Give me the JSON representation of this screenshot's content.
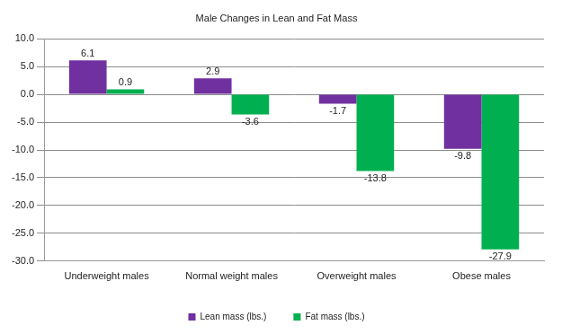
{
  "chart_data": {
    "type": "bar",
    "title": "Male Changes in Lean and Fat Mass",
    "categories": [
      "Underweight males",
      "Normal weight males",
      "Overweight males",
      "Obese males"
    ],
    "series": [
      {
        "name": "Lean mass (lbs.)",
        "color": "#7030a0",
        "values": [
          6.1,
          2.9,
          -1.7,
          -9.8
        ]
      },
      {
        "name": "Fat mass (lbs.)",
        "color": "#00b050",
        "values": [
          0.9,
          -3.6,
          -13.8,
          -27.9
        ]
      }
    ],
    "ylim": [
      -30,
      10
    ],
    "yticks": [
      {
        "value": -30,
        "label": "-30.0"
      },
      {
        "value": -25,
        "label": "-25.0"
      },
      {
        "value": -20,
        "label": "-20.0"
      },
      {
        "value": -15,
        "label": "-15.0"
      },
      {
        "value": -10,
        "label": "-10.0"
      },
      {
        "value": -5,
        "label": "-5.0"
      },
      {
        "value": 0,
        "label": "0.0"
      },
      {
        "value": 5,
        "label": "5.0"
      },
      {
        "value": 10,
        "label": "10.0"
      }
    ],
    "grid": true,
    "legend": "bottom",
    "data_labels": true
  }
}
